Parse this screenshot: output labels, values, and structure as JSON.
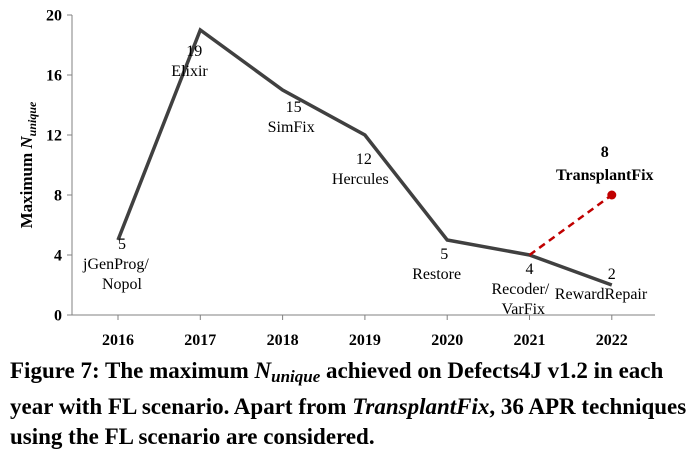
{
  "chart_data": {
    "type": "line",
    "ylabel_prefix": "Maximum ",
    "ylabel_var": "N",
    "ylabel_sub": "unique",
    "xlabel": "",
    "x": [
      "2016",
      "2017",
      "2018",
      "2019",
      "2020",
      "2021",
      "2022"
    ],
    "ylim": [
      0,
      20
    ],
    "yticks": [
      "0",
      "4",
      "8",
      "12",
      "16",
      "20"
    ],
    "grid": false,
    "series": [
      {
        "values": [
          5,
          19,
          15,
          12,
          5,
          4,
          2
        ],
        "color": "#404040",
        "style": "solid",
        "labels": [
          [
            "5",
            "jGenProg/",
            "Nopol"
          ],
          [
            "19",
            "Elixir"
          ],
          [
            "15",
            "SimFix"
          ],
          [
            "12",
            "Hercules"
          ],
          [
            "5",
            "Restore"
          ],
          [
            "4",
            "Recoder/",
            "VarFix"
          ],
          [
            "2",
            "RewardRepair"
          ]
        ]
      },
      {
        "x": [
          "2021",
          "2022"
        ],
        "values": [
          4,
          8
        ],
        "color": "#c00000",
        "style": "dashed",
        "labels": [
          [
            "8",
            "TransplantFix"
          ]
        ]
      }
    ]
  },
  "caption": {
    "prefix": "Figure 7: The maximum ",
    "var": "N",
    "sub": "unique",
    "mid": " achieved on Defects4J v1.2 in each year with FL scenario. Apart from ",
    "emph": "TransplantFix",
    "suffix": ", 36 APR techniques using the FL scenario are considered."
  }
}
